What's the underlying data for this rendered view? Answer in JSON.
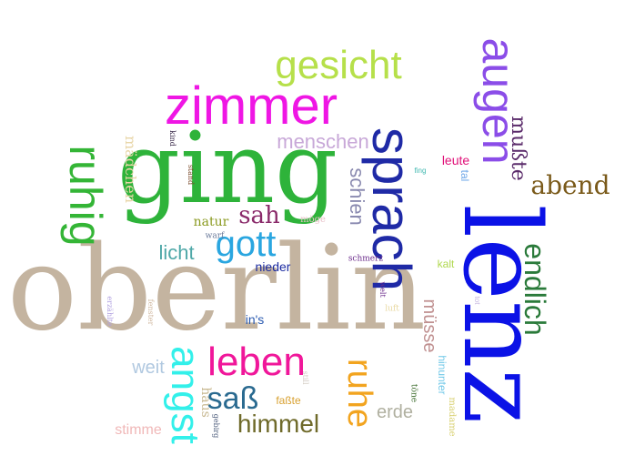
{
  "words": [
    {
      "text": "oberlin",
      "color": "#c4b4a0",
      "vertical": false
    },
    {
      "text": "lenz",
      "color": "#0b12e6",
      "vertical": true
    },
    {
      "text": "ging",
      "color": "#2eb33a",
      "vertical": false
    },
    {
      "text": "sprach",
      "color": "#1f2aa6",
      "vertical": true
    },
    {
      "text": "zimmer",
      "color": "#ef16e4",
      "vertical": false
    },
    {
      "text": "augen",
      "color": "#8b4de8",
      "vertical": true
    },
    {
      "text": "gesicht",
      "color": "#b6e04a",
      "vertical": false
    },
    {
      "text": "ruhig",
      "color": "#34b536",
      "vertical": true
    },
    {
      "text": "angst",
      "color": "#33f0ea",
      "vertical": true
    },
    {
      "text": "ruhe",
      "color": "#f2a41f",
      "vertical": true
    },
    {
      "text": "leben",
      "color": "#f0179a",
      "vertical": false
    },
    {
      "text": "gott",
      "color": "#2aa6e0",
      "vertical": false
    },
    {
      "text": "endlich",
      "color": "#2a7a3a",
      "vertical": true
    },
    {
      "text": "abend",
      "color": "#7a5a1a",
      "vertical": false
    },
    {
      "text": "himmel",
      "color": "#6f6a2a",
      "vertical": false
    },
    {
      "text": "saß",
      "color": "#2a6a90",
      "vertical": false
    },
    {
      "text": "menschen",
      "color": "#c8a8d8",
      "vertical": false
    },
    {
      "text": "mußte",
      "color": "#5a2a6a",
      "vertical": true
    },
    {
      "text": "schien",
      "color": "#8a8ab0",
      "vertical": true
    },
    {
      "text": "mädchen",
      "color": "#e8d6a8",
      "vertical": true
    },
    {
      "text": "sah",
      "color": "#8a2a6a",
      "vertical": false
    },
    {
      "text": "licht",
      "color": "#4fa8a8",
      "vertical": false
    },
    {
      "text": "müsse",
      "color": "#c09090",
      "vertical": true
    },
    {
      "text": "weit",
      "color": "#b0c8e0",
      "vertical": false
    },
    {
      "text": "erde",
      "color": "#b0b0a0",
      "vertical": false
    },
    {
      "text": "stimme",
      "color": "#f0b8b8",
      "vertical": false
    },
    {
      "text": "haus",
      "color": "#c8b890",
      "vertical": true
    },
    {
      "text": "leute",
      "color": "#e01078",
      "vertical": false
    },
    {
      "text": "natur",
      "color": "#8a9a20",
      "vertical": false
    },
    {
      "text": "nieder",
      "color": "#1a2aa0",
      "vertical": false
    },
    {
      "text": "in's",
      "color": "#2a5ab0",
      "vertical": false
    },
    {
      "text": "hinunter",
      "color": "#70c8e8",
      "vertical": true
    },
    {
      "text": "tal",
      "color": "#70a8e8",
      "vertical": true
    },
    {
      "text": "kalt",
      "color": "#b0d850",
      "vertical": false
    },
    {
      "text": "faßte",
      "color": "#d8a030",
      "vertical": false
    },
    {
      "text": "madame",
      "color": "#d8d070",
      "vertical": true
    },
    {
      "text": "möge",
      "color": "#e8c0c8",
      "vertical": false
    },
    {
      "text": "fenster",
      "color": "#d0b8a0",
      "vertical": true
    },
    {
      "text": "erzählte",
      "color": "#b0a0e0",
      "vertical": true
    },
    {
      "text": "luft",
      "color": "#e8d8a0",
      "vertical": false
    },
    {
      "text": "töne",
      "color": "#3a6a2a",
      "vertical": true
    },
    {
      "text": "tot",
      "color": "#c8b8e0",
      "vertical": true
    },
    {
      "text": "schmerz",
      "color": "#6a2a8a",
      "vertical": false
    },
    {
      "text": "welt",
      "color": "#6a2a8a",
      "vertical": true
    },
    {
      "text": "fing",
      "color": "#40b8b0",
      "vertical": false
    },
    {
      "text": "stand",
      "color": "#7a4a2a",
      "vertical": true
    },
    {
      "text": "kind",
      "color": "#3a2a4a",
      "vertical": true
    },
    {
      "text": "warf",
      "color": "#6a7a9a",
      "vertical": false
    },
    {
      "text": "still",
      "color": "#d0c8c0",
      "vertical": true
    },
    {
      "text": "gebirg",
      "color": "#4a5a7a",
      "vertical": true
    }
  ]
}
